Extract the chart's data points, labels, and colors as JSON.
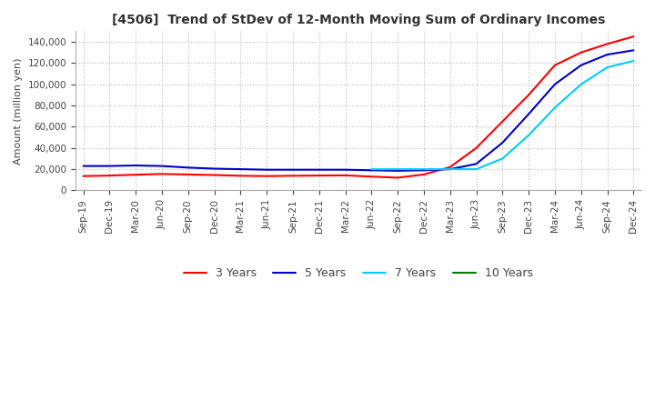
{
  "title": "[4506]  Trend of StDev of 12-Month Moving Sum of Ordinary Incomes",
  "ylabel": "Amount (million yen)",
  "line_colors": {
    "3 Years": "#ff0000",
    "5 Years": "#0000cd",
    "7 Years": "#00ccff",
    "10 Years": "#008000"
  },
  "background_color": "#ffffff",
  "grid_color": "#bbbbbb",
  "x_tick_labels": [
    "Sep-19",
    "Dec-19",
    "Mar-20",
    "Jun-20",
    "Sep-20",
    "Dec-20",
    "Mar-21",
    "Jun-21",
    "Sep-21",
    "Dec-21",
    "Mar-22",
    "Jun-22",
    "Sep-22",
    "Dec-22",
    "Mar-23",
    "Jun-23",
    "Sep-23",
    "Dec-23",
    "Mar-24",
    "Jun-24",
    "Sep-24",
    "Dec-24"
  ],
  "series": {
    "3 Years": [
      13500,
      14000,
      14800,
      15500,
      15000,
      14500,
      13800,
      13500,
      13800,
      14000,
      14200,
      13000,
      12000,
      15000,
      22000,
      40000,
      65000,
      90000,
      118000,
      130000,
      138000,
      145000
    ],
    "5 Years": [
      23000,
      23000,
      23500,
      23000,
      21500,
      20500,
      20000,
      19500,
      19500,
      19500,
      19500,
      19000,
      18500,
      19000,
      20000,
      25000,
      45000,
      72000,
      100000,
      118000,
      128000,
      132000
    ],
    "7 Years": [
      null,
      null,
      null,
      null,
      null,
      null,
      null,
      null,
      null,
      null,
      null,
      20000,
      20000,
      20000,
      20000,
      20000,
      30000,
      52000,
      78000,
      100000,
      116000,
      122000
    ],
    "10 Years": [
      null,
      null,
      null,
      null,
      null,
      null,
      null,
      null,
      null,
      null,
      null,
      null,
      null,
      null,
      null,
      null,
      null,
      null,
      null,
      null,
      null,
      null
    ]
  },
  "ylim": [
    0,
    150000
  ],
  "ytick_step": 20000,
  "title_fontsize": 10,
  "axis_label_fontsize": 8,
  "tick_fontsize": 7.5,
  "legend_fontsize": 9
}
